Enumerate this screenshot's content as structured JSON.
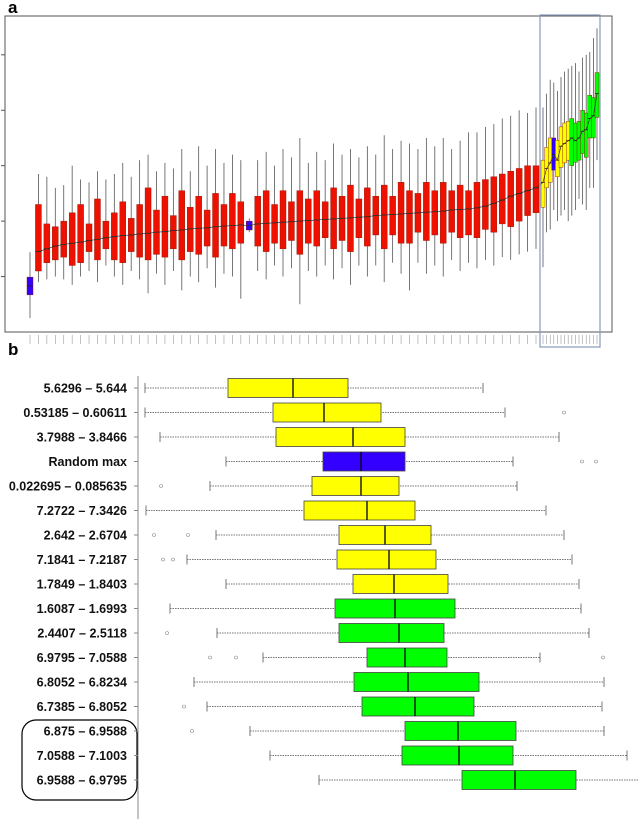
{
  "panels": {
    "a_label": "a",
    "b_label": "b"
  },
  "colors": {
    "random": "#3300ff",
    "low": "#ee1100",
    "mid": "#ffff00",
    "high": "#00ff00",
    "highlight_box": "#8899bb"
  },
  "chart_data": [
    {
      "type": "box",
      "panel": "a",
      "orientation": "vertical",
      "ylim": [
        0,
        5.7
      ],
      "yticks": [
        1,
        2,
        3,
        4,
        5
      ],
      "ytick_labels_shown": false,
      "grid": false,
      "legend": "none",
      "highlight": "rectangle around the yellow and green boxes",
      "boxes_format": [
        "lo",
        "q1",
        "median",
        "q3",
        "hi",
        "group"
      ],
      "boxes": [
        [
          0.25,
          0.67,
          0.83,
          0.99,
          1.44,
          "random"
        ],
        [
          0.9,
          1.1,
          1.45,
          2.3,
          2.85,
          "low"
        ],
        [
          0.95,
          1.25,
          1.5,
          1.95,
          2.8,
          "low"
        ],
        [
          1.0,
          1.3,
          1.55,
          1.9,
          2.6,
          "low"
        ],
        [
          0.95,
          1.35,
          1.58,
          2.0,
          2.65,
          "low"
        ],
        [
          0.85,
          1.2,
          1.6,
          2.15,
          3.0,
          "low"
        ],
        [
          1.0,
          1.25,
          1.62,
          2.3,
          2.75,
          "low"
        ],
        [
          1.1,
          1.45,
          1.65,
          1.95,
          2.7,
          "low"
        ],
        [
          0.9,
          1.3,
          1.67,
          2.4,
          2.9,
          "low"
        ],
        [
          1.2,
          1.5,
          1.7,
          2.0,
          2.75,
          "low"
        ],
        [
          1.0,
          1.3,
          1.72,
          2.15,
          2.85,
          "low"
        ],
        [
          0.85,
          1.25,
          1.74,
          2.35,
          3.05,
          "low"
        ],
        [
          1.1,
          1.45,
          1.75,
          2.05,
          2.8,
          "low"
        ],
        [
          0.95,
          1.35,
          1.77,
          2.3,
          3.1,
          "low"
        ],
        [
          0.7,
          1.3,
          1.78,
          2.6,
          3.2,
          "low"
        ],
        [
          1.05,
          1.4,
          1.8,
          2.2,
          2.9,
          "low"
        ],
        [
          0.85,
          1.35,
          1.81,
          2.45,
          3.05,
          "low"
        ],
        [
          1.1,
          1.5,
          1.83,
          2.1,
          2.95,
          "low"
        ],
        [
          0.75,
          1.3,
          1.84,
          2.55,
          3.3,
          "low"
        ],
        [
          1.0,
          1.45,
          1.86,
          2.25,
          2.9,
          "low"
        ],
        [
          0.9,
          1.4,
          1.87,
          2.45,
          3.35,
          "low"
        ],
        [
          1.15,
          1.55,
          1.88,
          2.2,
          3.0,
          "low"
        ],
        [
          0.8,
          1.35,
          1.9,
          2.5,
          3.3,
          "low"
        ],
        [
          1.05,
          1.55,
          1.91,
          2.3,
          3.05,
          "low"
        ],
        [
          1.0,
          1.5,
          1.92,
          2.5,
          3.2,
          "low"
        ],
        [
          0.6,
          1.6,
          1.93,
          2.35,
          3.1,
          "low"
        ],
        [
          1.8,
          1.84,
          1.92,
          2.0,
          2.05,
          "random"
        ],
        [
          1.1,
          1.55,
          1.95,
          2.45,
          3.1,
          "low"
        ],
        [
          0.95,
          1.45,
          1.96,
          2.55,
          3.25,
          "low"
        ],
        [
          1.2,
          1.6,
          1.97,
          2.3,
          3.0,
          "low"
        ],
        [
          1.0,
          1.5,
          1.98,
          2.55,
          3.3,
          "low"
        ],
        [
          1.15,
          1.65,
          1.99,
          2.35,
          3.15,
          "low"
        ],
        [
          0.5,
          1.4,
          2.0,
          2.55,
          3.5,
          "low"
        ],
        [
          1.1,
          1.6,
          2.01,
          2.4,
          3.05,
          "low"
        ],
        [
          1.0,
          1.55,
          2.02,
          2.55,
          3.25,
          "low"
        ],
        [
          1.2,
          1.7,
          2.03,
          2.35,
          3.1,
          "low"
        ],
        [
          0.95,
          1.5,
          2.04,
          2.6,
          3.4,
          "low"
        ],
        [
          1.15,
          1.65,
          2.05,
          2.45,
          3.2,
          "low"
        ],
        [
          0.85,
          1.45,
          2.06,
          2.65,
          3.3,
          "low"
        ],
        [
          1.2,
          1.7,
          2.07,
          2.4,
          3.15,
          "low"
        ],
        [
          1.0,
          1.55,
          2.08,
          2.6,
          3.35,
          "low"
        ],
        [
          1.2,
          1.75,
          2.1,
          2.45,
          3.2,
          "low"
        ],
        [
          0.9,
          1.5,
          2.11,
          2.65,
          3.55,
          "low"
        ],
        [
          1.25,
          1.75,
          2.12,
          2.45,
          3.3,
          "low"
        ],
        [
          1.05,
          1.6,
          2.13,
          2.7,
          3.45,
          "low"
        ],
        [
          0.75,
          1.6,
          2.14,
          2.55,
          3.4,
          "low"
        ],
        [
          1.25,
          1.8,
          2.15,
          2.5,
          3.3,
          "low"
        ],
        [
          1.05,
          1.65,
          2.16,
          2.7,
          3.5,
          "low"
        ],
        [
          1.2,
          1.75,
          2.17,
          2.55,
          3.35,
          "low"
        ],
        [
          1.0,
          1.6,
          2.18,
          2.7,
          3.5,
          "low"
        ],
        [
          1.3,
          1.8,
          2.2,
          2.55,
          3.3,
          "low"
        ],
        [
          1.1,
          1.7,
          2.21,
          2.65,
          3.45,
          "low"
        ],
        [
          1.25,
          1.75,
          2.22,
          2.55,
          3.6,
          "low"
        ],
        [
          1.15,
          1.7,
          2.24,
          2.7,
          3.6,
          "low"
        ],
        [
          1.3,
          1.85,
          2.27,
          2.75,
          3.7,
          "low"
        ],
        [
          1.2,
          1.8,
          2.32,
          2.8,
          3.75,
          "low"
        ],
        [
          1.35,
          1.95,
          2.38,
          2.85,
          3.85,
          "low"
        ],
        [
          1.3,
          1.9,
          2.45,
          2.9,
          3.9,
          "low"
        ],
        [
          1.4,
          2.0,
          2.5,
          2.95,
          4.0,
          "low"
        ],
        [
          1.45,
          2.1,
          2.55,
          3.0,
          3.95,
          "low"
        ],
        [
          1.5,
          2.15,
          2.6,
          3.0,
          4.05,
          "low"
        ],
        [
          1.17,
          2.25,
          2.7,
          3.1,
          4.05,
          "mid"
        ],
        [
          1.8,
          2.6,
          2.95,
          3.33,
          4.3,
          "mid"
        ],
        [
          1.85,
          2.7,
          3.05,
          3.5,
          4.55,
          "mid"
        ],
        [
          2.2,
          2.92,
          3.2,
          3.5,
          4.5,
          "random"
        ],
        [
          2.0,
          2.8,
          3.1,
          3.46,
          4.35,
          "mid"
        ],
        [
          2.1,
          2.97,
          3.35,
          3.7,
          4.6,
          "mid"
        ],
        [
          2.2,
          3.05,
          3.4,
          3.77,
          4.7,
          "mid"
        ],
        [
          2.0,
          3.1,
          3.45,
          3.8,
          4.75,
          "mid"
        ],
        [
          2.1,
          3.0,
          3.5,
          3.85,
          4.8,
          "high"
        ],
        [
          2.2,
          3.06,
          3.45,
          3.77,
          4.85,
          "high"
        ],
        [
          2.4,
          3.1,
          3.5,
          3.8,
          4.7,
          "high"
        ],
        [
          2.3,
          3.22,
          3.62,
          4.0,
          4.95,
          "high"
        ],
        [
          2.2,
          3.15,
          3.65,
          3.95,
          5.0,
          "high"
        ],
        [
          2.6,
          3.5,
          3.85,
          4.27,
          5.05,
          "high"
        ],
        [
          2.6,
          3.5,
          3.9,
          4.23,
          5.3,
          "high"
        ],
        [
          3.1,
          3.87,
          4.3,
          4.68,
          5.48,
          "high"
        ]
      ]
    },
    {
      "type": "box",
      "panel": "b",
      "orientation": "horizontal",
      "xlim": [
        0,
        100
      ],
      "xtick_labels_shown": false,
      "grid": false,
      "legend": "none",
      "bracketed_rows": [
        "6.875 – 6.9588",
        "7.0588 – 7.1003",
        "6.9588 – 6.9795"
      ],
      "rows": [
        {
          "label": "5.6296 – 5.644",
          "group": "mid",
          "lo": 1,
          "q1": 17.6,
          "median": 30.6,
          "q3": 41.6,
          "hi": 68.6,
          "outliers": []
        },
        {
          "label": "0.53185 – 0.60611",
          "group": "mid",
          "lo": 1,
          "q1": 26.6,
          "median": 36.8,
          "q3": 48.2,
          "hi": 73,
          "outliers": [
            84.8
          ]
        },
        {
          "label": "3.7988 – 3.8466",
          "group": "mid",
          "lo": 4,
          "q1": 27.2,
          "median": 42.6,
          "q3": 53,
          "hi": 83.8,
          "outliers": []
        },
        {
          "label": "Random max",
          "group": "random",
          "lo": 17.2,
          "q1": 36.6,
          "median": 44.2,
          "q3": 53,
          "hi": 74.6,
          "outliers": [
            88.4,
            91.2
          ]
        },
        {
          "label": "0.022695 – 0.085635",
          "group": "mid",
          "lo": 14,
          "q1": 34.4,
          "median": 44.2,
          "q3": 51.8,
          "hi": 75.4,
          "outliers": [
            4.2
          ]
        },
        {
          "label": "7.2722 – 7.3426",
          "group": "mid",
          "lo": 1.2,
          "q1": 32.8,
          "median": 45.4,
          "q3": 55,
          "hi": 81.2,
          "outliers": []
        },
        {
          "label": "2.642 – 2.6704",
          "group": "mid",
          "lo": 15.2,
          "q1": 39.8,
          "median": 49,
          "q3": 58.2,
          "hi": 84.8,
          "outliers": [
            2.8,
            9.6
          ]
        },
        {
          "label": "7.1841 – 7.2187",
          "group": "mid",
          "lo": 9.4,
          "q1": 39.4,
          "median": 49.8,
          "q3": 59.2,
          "hi": 86.4,
          "outliers": [
            4.6,
            6.6
          ]
        },
        {
          "label": "1.7849 – 1.8403",
          "group": "mid",
          "lo": 17.2,
          "q1": 42.6,
          "median": 50.8,
          "q3": 61.6,
          "hi": 87.8,
          "outliers": []
        },
        {
          "label": "1.6087 – 1.6993",
          "group": "high",
          "lo": 6,
          "q1": 39,
          "median": 51,
          "q3": 63,
          "hi": 88.2,
          "outliers": []
        },
        {
          "label": "2.4407 – 2.5118",
          "group": "high",
          "lo": 15.4,
          "q1": 39.8,
          "median": 51.8,
          "q3": 60.8,
          "hi": 89.8,
          "outliers": [
            5.4
          ]
        },
        {
          "label": "6.9795 – 7.0588",
          "group": "high",
          "lo": 24.6,
          "q1": 45.4,
          "median": 53,
          "q3": 61.4,
          "hi": 80,
          "outliers": [
            14,
            19.2,
            92.6
          ]
        },
        {
          "label": "6.8052 – 6.8234",
          "group": "high",
          "lo": 10.8,
          "q1": 42.8,
          "median": 53.6,
          "q3": 67.8,
          "hi": 92.8,
          "outliers": []
        },
        {
          "label": "6.7385 – 6.8052",
          "group": "high",
          "lo": 13.4,
          "q1": 44.4,
          "median": 55,
          "q3": 66.8,
          "hi": 92.4,
          "outliers": [
            8.8
          ]
        },
        {
          "label": "6.875 – 6.9588",
          "group": "high",
          "lo": 22,
          "q1": 53,
          "median": 63.6,
          "q3": 75.2,
          "hi": 92.8,
          "outliers": [
            10.4
          ]
        },
        {
          "label": "7.0588 – 7.1003",
          "group": "high",
          "lo": 26,
          "q1": 52.4,
          "median": 63.8,
          "q3": 74.6,
          "hi": 97.4,
          "outliers": []
        },
        {
          "label": "6.9588 – 6.9795",
          "group": "high",
          "lo": 35.8,
          "q1": 64.4,
          "median": 75,
          "q3": 87.2,
          "hi": 100,
          "outliers": []
        }
      ]
    }
  ]
}
